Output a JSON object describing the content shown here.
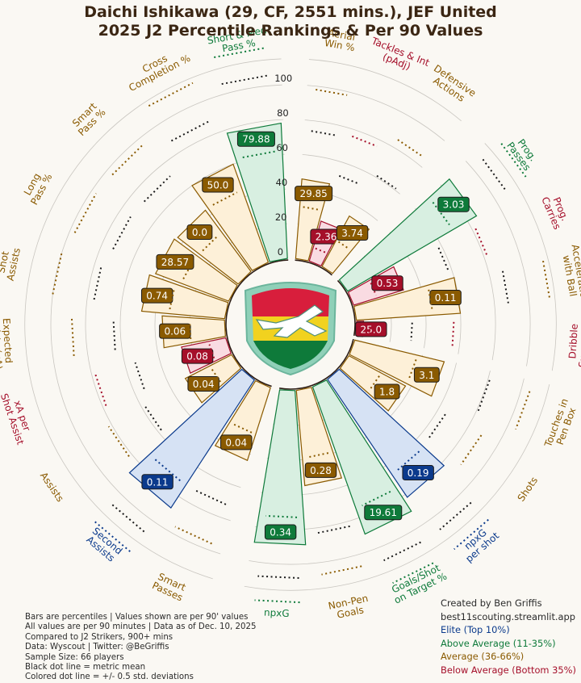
{
  "title": {
    "line1": "Daichi Ishikawa (29, CF, 2551 mins.), JEF United",
    "line2": "2025 J2 Percentile Rankings & Per 90 Values"
  },
  "colors": {
    "elite": "#0b3a8c",
    "above_average": "#0e7a3a",
    "average": "#8a5a00",
    "below_average": "#a50f2a",
    "elite_fill": "#d6e2f4",
    "above_fill": "#d8efe1",
    "average_fill": "#fdf0d8",
    "below_fill": "#f9dbe2"
  },
  "chart_data": {
    "type": "radial-bar",
    "title": "Daichi Ishikawa (29, CF, 2551 mins.), JEF United 2025 J2 Percentile Rankings & Per 90 Values",
    "radial_axis_ticks": [
      "0",
      "20",
      "40",
      "60",
      "80",
      "100"
    ],
    "ylim": [
      0,
      100
    ],
    "groups": [
      {
        "metrics": [
          {
            "label": "Long\nPass %",
            "percentile": 45,
            "value": "28.57",
            "tier": "average"
          },
          {
            "label": "Smart\nPass %",
            "percentile": 44,
            "value": "0.0",
            "tier": "average"
          },
          {
            "label": "Cross\nCompletion %",
            "percentile": 60,
            "value": "50.0",
            "tier": "average"
          },
          {
            "label": "Short & Med\nPass %",
            "percentile": 78,
            "value": "79.88",
            "tier": "above_average"
          }
        ]
      },
      {
        "metrics": [
          {
            "label": "Aerial\nWin %",
            "percentile": 46,
            "value": "29.85",
            "tier": "average"
          },
          {
            "label": "Tackles & Int\n(pAdj)",
            "percentile": 24,
            "value": "2.36",
            "tier": "below_average"
          },
          {
            "label": "Defensive\nActions",
            "percentile": 33,
            "value": "3.74",
            "tier": "average"
          }
        ]
      },
      {
        "metrics": [
          {
            "label": "Prog.\nPasses",
            "percentile": 86,
            "value": "3.03",
            "tier": "above_average"
          },
          {
            "label": "Prog.\nCarries",
            "percentile": 30,
            "value": "0.53",
            "tier": "below_average"
          },
          {
            "label": "Acceleration\nwith Ball",
            "percentile": 60,
            "value": "0.11",
            "tier": "average"
          },
          {
            "label": "Dribble\nSuccess %",
            "percentile": 4,
            "value": "25.0",
            "tier": "below_average"
          }
        ]
      },
      {
        "metrics": [
          {
            "label": "Touches in\nPen Box",
            "percentile": 53,
            "value": "3.1",
            "tier": "average"
          },
          {
            "label": "Shots",
            "percentile": 37,
            "value": "1.8",
            "tier": "average"
          },
          {
            "label": "npxG\nper shot",
            "percentile": 82,
            "value": "0.19",
            "tier": "elite"
          },
          {
            "label": "Goals/Shot\non Target %",
            "percentile": 90,
            "value": "19.61",
            "tier": "above_average"
          },
          {
            "label": "Non-Pen\nGoals",
            "percentile": 55,
            "value": "0.28",
            "tier": "average"
          },
          {
            "label": "npxG",
            "percentile": 89,
            "value": "0.34",
            "tier": "above_average"
          }
        ]
      },
      {
        "metrics": [
          {
            "label": "Smart\nPasses",
            "percentile": 44,
            "value": "0.04",
            "tier": "average"
          },
          {
            "label": "Second\nAssists",
            "percentile": 88,
            "value": "0.11",
            "tier": "elite"
          },
          {
            "label": "Assists",
            "percentile": 30,
            "value": "0.04",
            "tier": "average"
          },
          {
            "label": "xA per\nShot Assist",
            "percentile": 26,
            "value": "0.08",
            "tier": "below_average"
          },
          {
            "label": "Expected\nAssists (xA)",
            "percentile": 36,
            "value": "0.06",
            "tier": "average"
          },
          {
            "label": "Shot\nAssists",
            "percentile": 48,
            "value": "0.74",
            "tier": "average"
          }
        ]
      }
    ]
  },
  "notes": [
    "Bars are percentiles | Values shown are per 90' values",
    "All values are per 90 minutes | Data as of Dec. 10, 2025",
    "Compared to J2 Strikers, 900+ mins",
    "Data: Wyscout | Twitter: @BeGriffis",
    "Sample Size: 66 players",
    "Black dot line = metric mean",
    "Colored dot line = +/- 0.5 std. deviations"
  ],
  "credits": {
    "line1": "Created by Ben Griffis",
    "line2": "best11scouting.streamlit.app"
  },
  "legend": [
    {
      "label": "Elite (Top 10%)",
      "tier": "elite"
    },
    {
      "label": "Above Average (11-35%)",
      "tier": "above_average"
    },
    {
      "label": "Average (36-66%)",
      "tier": "average"
    },
    {
      "label": "Below Average (Bottom 35%)",
      "tier": "below_average"
    }
  ]
}
